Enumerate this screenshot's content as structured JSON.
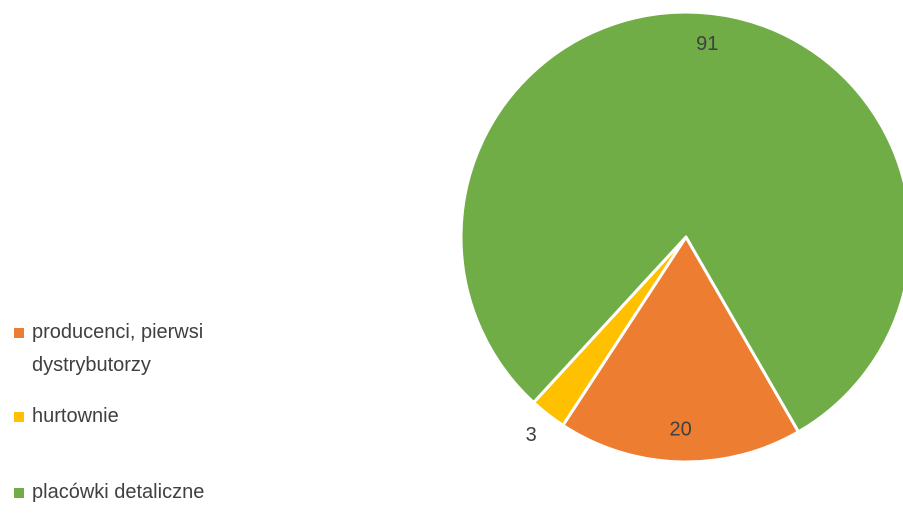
{
  "chart_data": {
    "type": "pie",
    "categories": [
      "producenci, pierwsi dystrybutorzy",
      "hurtownie",
      "placówki detaliczne"
    ],
    "values": [
      20,
      3,
      91
    ],
    "colors": [
      "#ED7D31",
      "#FFC000",
      "#70AD47"
    ],
    "start_angle": 150,
    "legend": "left"
  }
}
